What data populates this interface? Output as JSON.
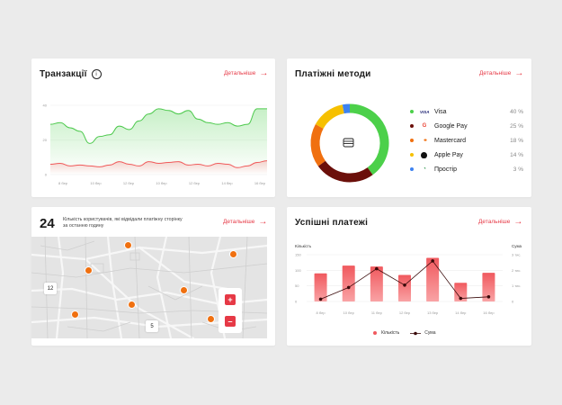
{
  "transactions": {
    "title": "Транзакції",
    "more": "Детальніше",
    "y_ticks": [
      "40",
      "20",
      "0"
    ],
    "x_ticks": [
      "8 бер",
      "10 бер",
      "12 бер",
      "10 бер",
      "12 бер",
      "14 бер",
      "16 бер"
    ]
  },
  "payment_methods": {
    "title": "Платіжні методи",
    "more": "Детальніше",
    "items": [
      {
        "label": "Visa",
        "icon": "VISA",
        "pct": "40 %",
        "color": "#4cd04a"
      },
      {
        "label": "Google Pay",
        "icon": "G",
        "pct": "25 %",
        "color": "#6b0f0a"
      },
      {
        "label": "Mastercard",
        "icon": "●●",
        "pct": "18 %",
        "color": "#f07010"
      },
      {
        "label": "Apple Pay",
        "icon": "",
        "pct": "14 %",
        "color": "#f6c000"
      },
      {
        "label": "Простір",
        "icon": "◔",
        "pct": "3 %",
        "color": "#3d82f0"
      }
    ]
  },
  "visitors": {
    "count": "24",
    "description": "Кількість користувачів, які відвідали платіжну сторінку за останню годину",
    "more": "Детальніше",
    "badges": [
      "12",
      "5"
    ],
    "zoom_in": "+",
    "zoom_out": "–"
  },
  "success": {
    "title": "Успішні платежі",
    "more": "Детальніше",
    "left_axis_label": "Кількість",
    "right_axis_label": "Сума",
    "left_ticks": [
      "150",
      "100",
      "50",
      "0"
    ],
    "right_ticks": [
      "3 тис.",
      "2 тис.",
      "1 тис.",
      "0"
    ],
    "x_ticks": [
      "8 бер",
      "10 бер",
      "11 бер",
      "12 бер",
      "13 бер",
      "14 бер",
      "16 бер"
    ],
    "legend_count": "Кількість",
    "legend_sum": "Сума"
  },
  "chart_data": [
    {
      "type": "area",
      "title": "Транзакції",
      "ylim": [
        0,
        40
      ],
      "series": [
        {
          "values": [
            29,
            30,
            27,
            25,
            18,
            22,
            23,
            28,
            26,
            31,
            35,
            38,
            37,
            35,
            37,
            32,
            30,
            29,
            30,
            28,
            29,
            38,
            38
          ]
        },
        {
          "values": [
            6,
            6.5,
            5,
            5.5,
            5,
            4.5,
            5.5,
            7.5,
            6,
            5,
            7.5,
            6.5,
            7,
            7.5,
            5.5,
            6,
            5,
            6.5,
            6,
            4,
            5,
            7,
            8
          ]
        }
      ]
    },
    {
      "type": "pie",
      "title": "Платіжні методи",
      "categories": [
        "Visa",
        "Google Pay",
        "Mastercard",
        "Apple Pay",
        "Простір"
      ],
      "values": [
        40,
        25,
        18,
        14,
        3
      ]
    },
    {
      "type": "bar",
      "title": "Успішні платежі",
      "categories": [
        "8 бер",
        "10 бер",
        "11 бер",
        "12 бер",
        "13 бер",
        "14 бер",
        "16 бер"
      ],
      "series": [
        {
          "name": "Кількість",
          "values": [
            90,
            115,
            112,
            85,
            140,
            60,
            92
          ]
        },
        {
          "name": "Сума",
          "values": [
            0.15,
            0.9,
            2.1,
            1.05,
            2.6,
            0.2,
            0.3
          ]
        }
      ],
      "ylim": [
        0,
        150
      ],
      "y2lim": [
        0,
        3
      ]
    }
  ]
}
